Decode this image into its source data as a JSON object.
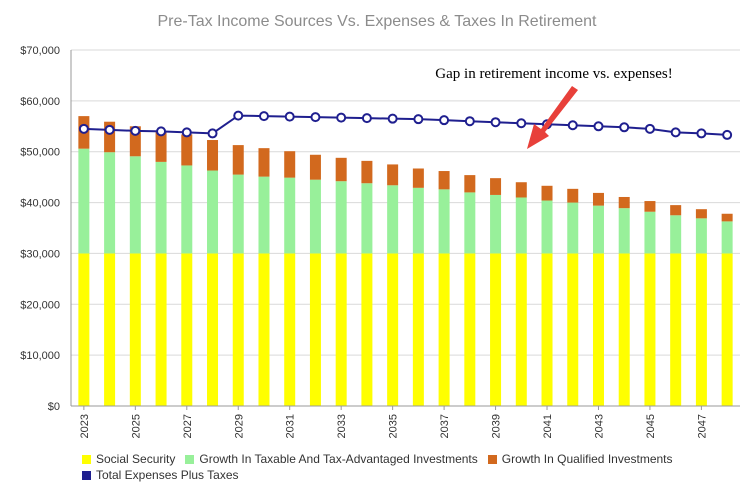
{
  "chart_data": {
    "type": "bar",
    "stacked": true,
    "title": "Pre-Tax Income Sources Vs. Expenses & Taxes In Retirement",
    "xlabel": "",
    "ylabel": "",
    "ylim": [
      0,
      70000
    ],
    "yticks": [
      0,
      10000,
      20000,
      30000,
      40000,
      50000,
      60000,
      70000
    ],
    "ytick_labels": [
      "$0",
      "$10,000",
      "$20,000",
      "$30,000",
      "$40,000",
      "$50,000",
      "$60,000",
      "$70,000"
    ],
    "x": [
      2023,
      2024,
      2025,
      2026,
      2027,
      2028,
      2029,
      2030,
      2031,
      2032,
      2033,
      2034,
      2035,
      2036,
      2037,
      2038,
      2039,
      2040,
      2041,
      2042,
      2043,
      2044,
      2045,
      2046,
      2047,
      2048
    ],
    "xtick_labels": [
      "2023",
      "2025",
      "2027",
      "2029",
      "2031",
      "2033",
      "2035",
      "2037",
      "2039",
      "2041",
      "2043",
      "2045",
      "2047"
    ],
    "grid": true,
    "legend_position": "bottom",
    "series": [
      {
        "name": "Social Security",
        "kind": "bar",
        "color": "#ffff00",
        "values": [
          30000,
          30000,
          30000,
          30000,
          30000,
          30000,
          30000,
          30000,
          30000,
          30000,
          30000,
          30000,
          30000,
          30000,
          30000,
          30000,
          30000,
          30000,
          30000,
          30000,
          30000,
          30000,
          30000,
          30000,
          30000,
          30000
        ]
      },
      {
        "name": "Growth In Taxable And Tax-Advantaged Investments",
        "kind": "bar",
        "color": "#98f09a",
        "values": [
          20600,
          19900,
          19100,
          18000,
          17300,
          16300,
          15500,
          15100,
          14900,
          14500,
          14200,
          13800,
          13400,
          12900,
          12600,
          12000,
          11500,
          11000,
          10400,
          10000,
          9400,
          8900,
          8200,
          7500,
          6900,
          6300
        ]
      },
      {
        "name": "Growth In Qualified Investments",
        "kind": "bar",
        "color": "#d2691e",
        "values": [
          6400,
          6000,
          5900,
          6000,
          6100,
          6000,
          5800,
          5600,
          5200,
          4900,
          4600,
          4400,
          4100,
          3800,
          3600,
          3400,
          3300,
          3000,
          2900,
          2700,
          2500,
          2200,
          2100,
          2000,
          1800,
          1500
        ]
      },
      {
        "name": "Total Expenses Plus Taxes",
        "kind": "line",
        "color": "#1f1f8f",
        "values": [
          54500,
          54300,
          54100,
          54000,
          53800,
          53600,
          57100,
          57000,
          56900,
          56800,
          56700,
          56600,
          56500,
          56400,
          56200,
          56000,
          55800,
          55600,
          55400,
          55200,
          55000,
          54800,
          54500,
          53800,
          53600,
          53300
        ]
      }
    ],
    "annotations": [
      {
        "text": "Gap in retirement income vs. expenses!",
        "arrow_color": "#e8403a"
      }
    ]
  }
}
